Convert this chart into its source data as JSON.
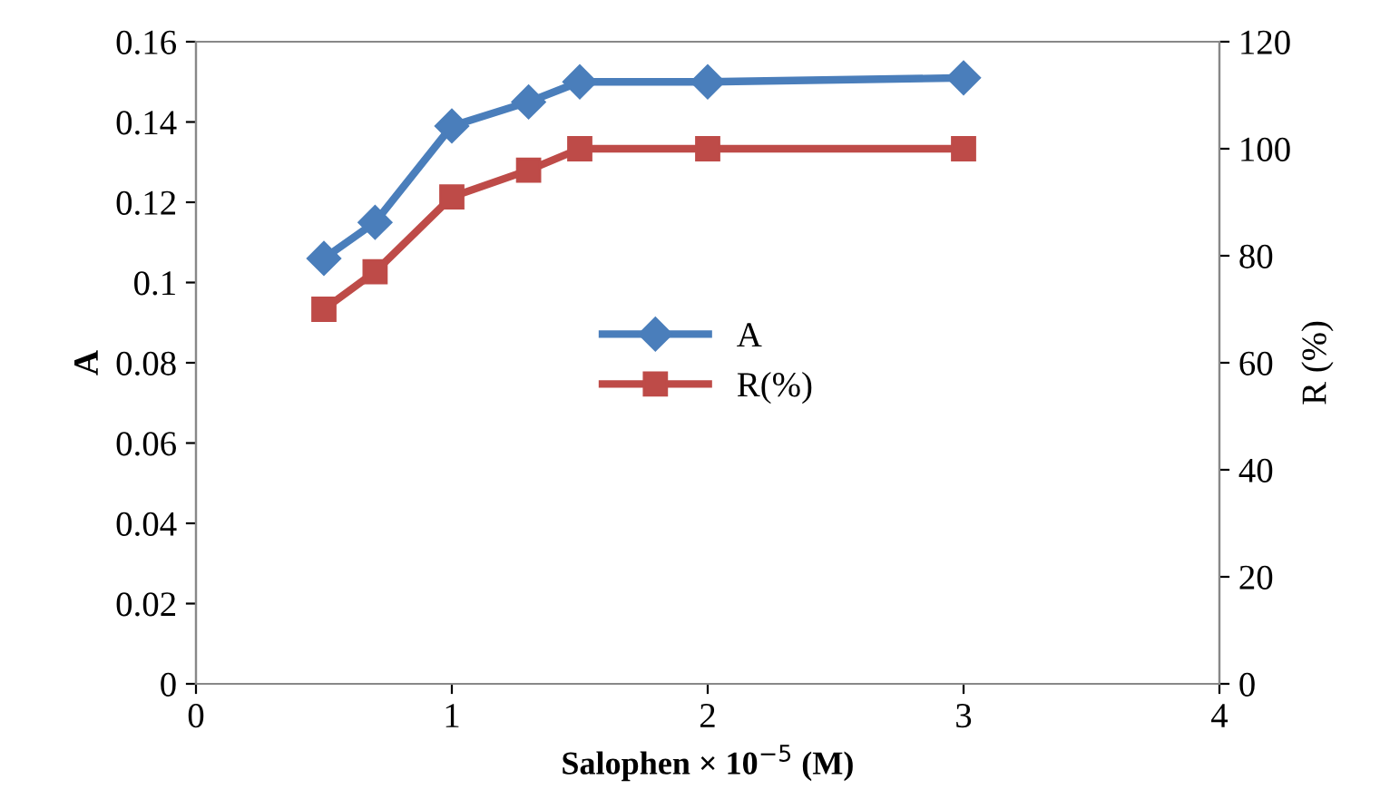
{
  "chart_data": {
    "type": "line",
    "xlabel": "Salophen × 10$^{−5}$ (M)",
    "ylabel": "A",
    "y2label": "R (%)",
    "xlim": [
      0,
      4
    ],
    "xticks": [
      0,
      1,
      2,
      3,
      4
    ],
    "ylim": [
      0,
      0.16
    ],
    "yticks": [
      0,
      0.02,
      0.04,
      0.06,
      0.08,
      {
        "value": 0.1,
        "label": "0.1"
      },
      0.12,
      0.14,
      0.16
    ],
    "y2lim": [
      0,
      120
    ],
    "y2ticks": [
      0,
      20,
      40,
      60,
      80,
      100,
      120
    ],
    "grid": false,
    "legend": "center",
    "line_style": "solid",
    "series": [
      {
        "name": "A",
        "color": "#4a7ebb",
        "marker": "diamond",
        "x": [
          0.5,
          0.7,
          1,
          1.3,
          1.5,
          2,
          3
        ],
        "values": [
          0.106,
          0.115,
          0.139,
          0.145,
          0.15,
          0.15,
          0.151
        ]
      },
      {
        "name": "R(%)",
        "color": "#be4b48",
        "marker": "square",
        "axis": "y2",
        "x": [
          0.5,
          0.7,
          1,
          1.3,
          1.5,
          2,
          3
        ],
        "values": [
          70,
          77,
          91,
          96,
          100,
          100,
          100
        ]
      }
    ]
  }
}
